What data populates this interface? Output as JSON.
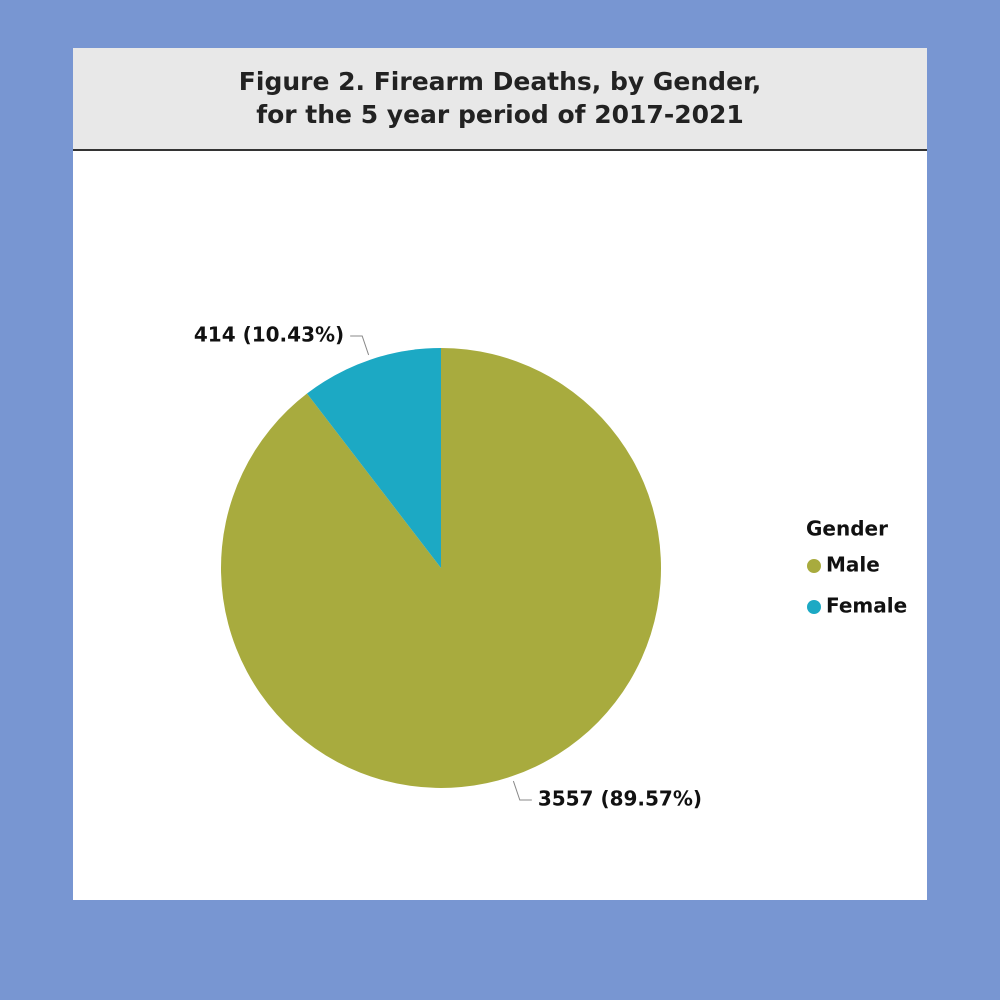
{
  "chart_data": {
    "type": "pie",
    "title": "Figure 2. Firearm Deaths, by Gender, for the 5 year period of 2017-2021",
    "legend_title": "Gender",
    "legend": "right",
    "categories": [
      "Male",
      "Female"
    ],
    "values": [
      3557,
      414
    ],
    "value_labels": [
      "3557 (89.57%)",
      "414 (10.43%)"
    ],
    "colors": [
      "#a8ab3e",
      "#1ca9c4"
    ]
  }
}
